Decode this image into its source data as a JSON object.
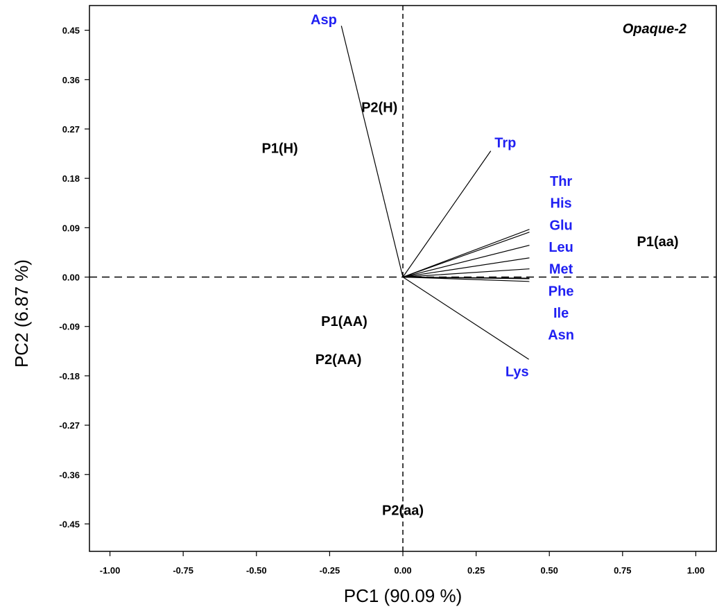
{
  "chart_data": {
    "type": "scatter",
    "title": "Opaque-2",
    "xlabel": "PC1 (90.09 %)",
    "ylabel": "PC2  (6.87 %)",
    "xlim": [
      -1.07,
      1.07
    ],
    "ylim": [
      -0.5,
      0.495
    ],
    "x_ticks": [
      {
        "value": -1.0,
        "label": "-1.00"
      },
      {
        "value": -0.75,
        "label": "-0.75"
      },
      {
        "value": -0.5,
        "label": "-0.50"
      },
      {
        "value": -0.25,
        "label": "-0.25"
      },
      {
        "value": 0.0,
        "label": "0.00"
      },
      {
        "value": 0.25,
        "label": "0.25"
      },
      {
        "value": 0.5,
        "label": "0.50"
      },
      {
        "value": 0.75,
        "label": "0.75"
      },
      {
        "value": 1.0,
        "label": "1.00"
      }
    ],
    "y_ticks": [
      {
        "value": 0.45,
        "label": "0.45"
      },
      {
        "value": 0.36,
        "label": "0.36"
      },
      {
        "value": 0.27,
        "label": "0.27"
      },
      {
        "value": 0.18,
        "label": "0.18"
      },
      {
        "value": 0.09,
        "label": "0.09"
      },
      {
        "value": 0.0,
        "label": "0.00"
      },
      {
        "value": -0.09,
        "label": "-0.09"
      },
      {
        "value": -0.18,
        "label": "-0.18"
      },
      {
        "value": -0.27,
        "label": "-0.27"
      },
      {
        "value": -0.36,
        "label": "-0.36"
      },
      {
        "value": -0.45,
        "label": "-0.45"
      }
    ],
    "reference_lines": {
      "x": 0,
      "y": 0,
      "style": "dashed"
    },
    "grid": false,
    "points": [
      {
        "label": "P2(H)",
        "x": -0.08,
        "y": 0.31
      },
      {
        "label": "P1(H)",
        "x": -0.42,
        "y": 0.235
      },
      {
        "label": "P1(aa)",
        "x": 0.87,
        "y": 0.065
      },
      {
        "label": "P1(AA)",
        "x": -0.2,
        "y": -0.08
      },
      {
        "label": "P2(AA)",
        "x": -0.22,
        "y": -0.15
      },
      {
        "label": "P2(aa)",
        "x": 0.0,
        "y": -0.425
      }
    ],
    "vectors": [
      {
        "label": "Asp",
        "x": -0.21,
        "y": 0.458,
        "label_x": -0.27,
        "label_y": 0.47
      },
      {
        "label": "Trp",
        "x": 0.3,
        "y": 0.23,
        "label_x": 0.35,
        "label_y": 0.245
      },
      {
        "label": "Thr",
        "x": 0.432,
        "y": 0.087,
        "label_x": 0.54,
        "label_y": 0.175
      },
      {
        "label": "His",
        "x": 0.432,
        "y": 0.082,
        "label_x": 0.54,
        "label_y": 0.135
      },
      {
        "label": "Glu",
        "x": 0.432,
        "y": 0.058,
        "label_x": 0.54,
        "label_y": 0.095
      },
      {
        "label": "Leu",
        "x": 0.432,
        "y": 0.035,
        "label_x": 0.54,
        "label_y": 0.055
      },
      {
        "label": "Met",
        "x": 0.432,
        "y": 0.015,
        "label_x": 0.54,
        "label_y": 0.015
      },
      {
        "label": "Phe",
        "x": 0.432,
        "y": -0.003,
        "label_x": 0.54,
        "label_y": -0.025
      },
      {
        "label": "Ile",
        "x": 0.432,
        "y": -0.008,
        "label_x": 0.54,
        "label_y": -0.065
      },
      {
        "label": "Asn",
        "x": 0.432,
        "y": -0.002,
        "label_x": 0.54,
        "label_y": -0.105
      },
      {
        "label": "Lys",
        "x": 0.43,
        "y": -0.15,
        "label_x": 0.39,
        "label_y": -0.172
      }
    ],
    "colors": {
      "vector_label": "#1f1ff2",
      "point_label": "#000000",
      "line": "#000000"
    }
  }
}
